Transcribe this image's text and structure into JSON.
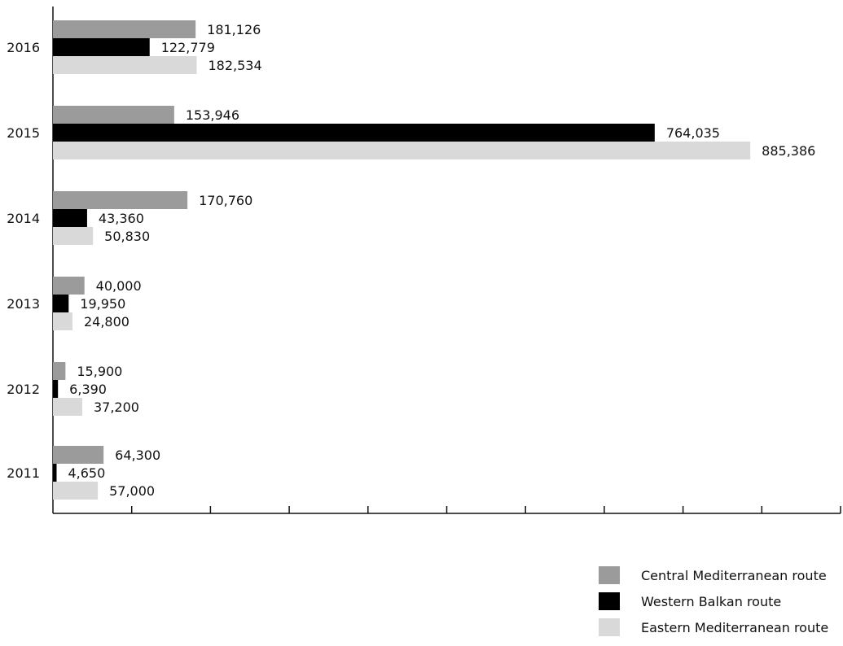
{
  "chart_data": {
    "type": "bar",
    "orientation": "horizontal",
    "categories": [
      "2016",
      "2015",
      "2014",
      "2013",
      "2012",
      "2011"
    ],
    "series": [
      {
        "name": "Central Mediterranean route",
        "color": "#9b9b9b",
        "values": [
          181126,
          153946,
          170760,
          40000,
          15900,
          64300
        ],
        "labels": [
          "181,126",
          "153,946",
          "170,760",
          "40,000",
          "15,900",
          "64,300"
        ]
      },
      {
        "name": "Western Balkan route",
        "color": "#000000",
        "values": [
          122779,
          764035,
          43360,
          19950,
          6390,
          4650
        ],
        "labels": [
          "122,779",
          "764,035",
          "43,360",
          "19,950",
          "6,390",
          "4,650"
        ]
      },
      {
        "name": "Eastern Mediterranean route",
        "color": "#d9d9d9",
        "values": [
          182534,
          885386,
          50830,
          24800,
          37200,
          57000
        ],
        "labels": [
          "182,534",
          "885,386",
          "50,830",
          "24,800",
          "37,200",
          "57,000"
        ]
      }
    ],
    "xlim": [
      0,
      1000000
    ],
    "x_ticks": 10,
    "legend_position": "bottom-right",
    "grid": false
  }
}
